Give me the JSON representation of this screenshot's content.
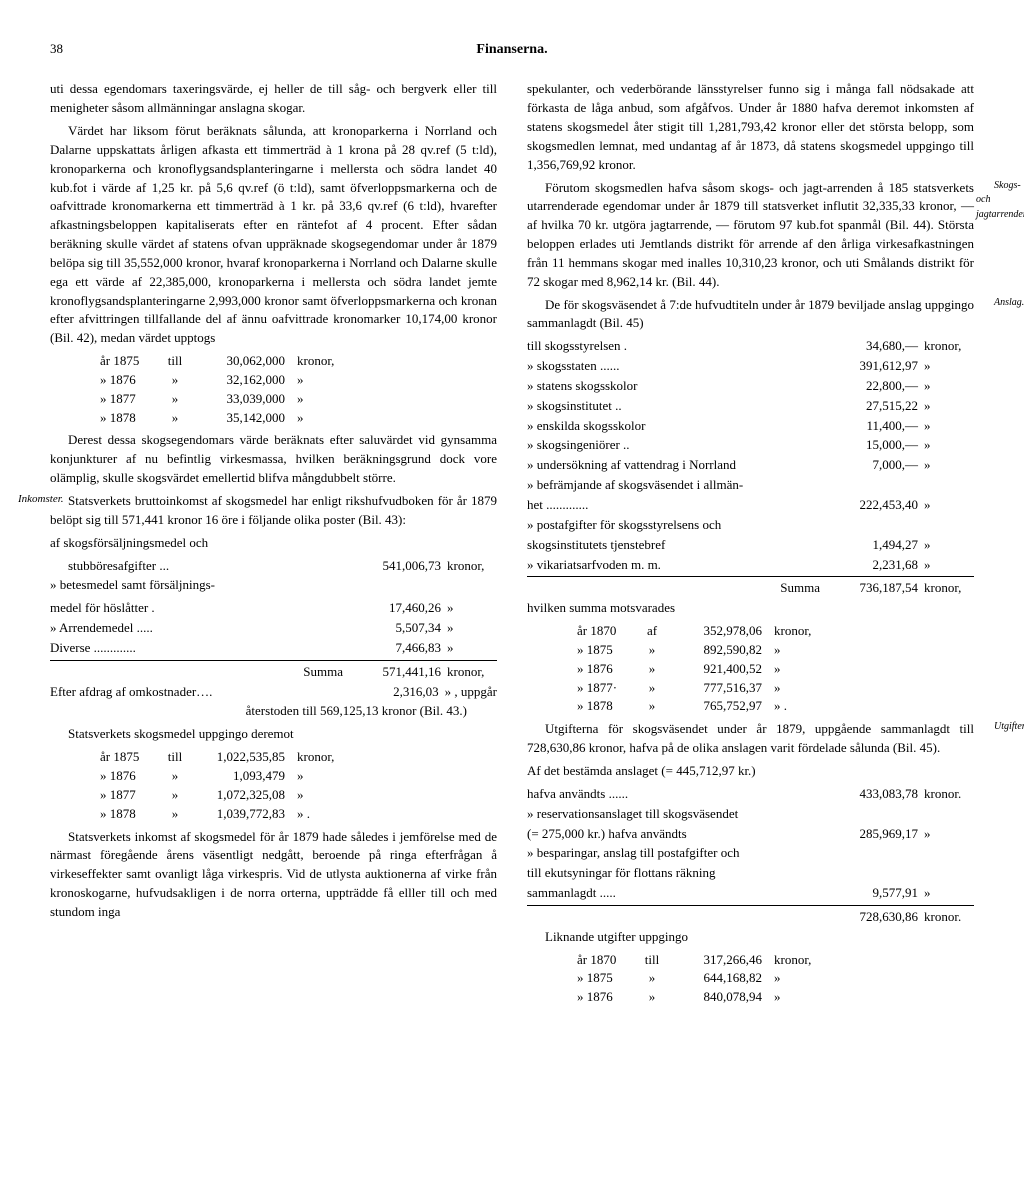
{
  "header": {
    "page_number": "38",
    "title": "Finanserna."
  },
  "left": {
    "p1": "uti dessa egendomars taxeringsvärde, ej heller de till såg- och bergverk eller till menigheter såsom allmänningar anslagna skogar.",
    "p2": "Värdet har liksom förut beräknats sålunda, att kronoparkerna i Norrland och Dalarne uppskattats årligen afkasta ett timmerträd à 1 krona på 28 qv.ref (5 t:ld), kronoparkerna och kronoflygsandsplanteringarne i mellersta och södra landet 40 kub.fot i värde af 1,25 kr. på 5,6 qv.ref (ö t:ld), samt öfverloppsmarkerna och de oafvittrade kronomarkerna ett timmerträd à 1 kr. på 33,6 qv.ref (6 t:ld), hvarefter afkastningsbeloppen kapitaliserats efter en räntefot af 4 procent. Efter sådan beräkning skulle värdet af statens ofvan uppräknade skogsegendomar under år 1879 belöpa sig till 35,552,000 kronor, hvaraf kronoparkerna i Norrland och Dalarne skulle ega ett värde af 22,385,000, kronoparkerna i mellersta och södra landet jemte kronoflygsandsplanteringarne 2,993,000 kronor samt öfverloppsmarkerna och kronan efter afvittringen tillfallande del af ännu oafvittrade kronomarker 10,174,00 kronor (Bil. 42), medan värdet upptogs",
    "years1": [
      {
        "y": "år 1875",
        "w": "till",
        "v": "30,062,000",
        "u": "kronor,"
      },
      {
        "y": "»  1876",
        "w": "»",
        "v": "32,162,000",
        "u": "»"
      },
      {
        "y": "»  1877",
        "w": "»",
        "v": "33,039,000",
        "u": "»"
      },
      {
        "y": "»  1878",
        "w": "»",
        "v": "35,142,000",
        "u": "»"
      }
    ],
    "p3": "Derest dessa skogsegendomars värde beräknats efter saluvärdet vid gynsamma konjunkturer af nu befintlig virkesmassa, hvilken beräkningsgrund dock vore olämplig, skulle skogsvärdet emellertid blifva mångdubbelt större.",
    "margin1": "Inkomster.",
    "p4": "Statsverkets bruttoinkomst af skogsmedel har enligt rikshufvudboken för år 1879 belöpt sig till 571,441 kronor 16 öre i följande olika poster (Bil. 43):",
    "p5": "af skogsförsäljningsmedel och",
    "fin1": [
      {
        "l": "stubböresafgifter",
        "v": "541,006,73",
        "u": "kronor,"
      }
    ],
    "p6": "»  betesmedel samt försäljnings-",
    "fin2": [
      {
        "l": "medel för höslåtter",
        "v": "17,460,26",
        "u": "»"
      },
      {
        "l": "»  Arrendemedel",
        "v": "5,507,34",
        "u": "»"
      },
      {
        "l": "Diverse",
        "v": "7,466,83",
        "u": "»"
      }
    ],
    "sum1_label": "Summa",
    "sum1_val": "571,441,16",
    "sum1_unit": "kronor,",
    "p7a": "Efter afdrag af omkostnader…. ",
    "p7b": "2,316,03",
    "p7c": "»    , uppgår",
    "p8": "återstoden till 569,125,13 kronor  (Bil. 43.)",
    "p9": "Statsverkets skogsmedel uppgingo deremot",
    "years2": [
      {
        "y": "år 1875",
        "w": "till",
        "v": "1,022,535,85",
        "u": "kronor,"
      },
      {
        "y": "»  1876",
        "w": "»",
        "v": "1,093,479",
        "u": "»"
      },
      {
        "y": "»  1877",
        "w": "»",
        "v": "1,072,325,08",
        "u": "»"
      },
      {
        "y": "»  1878",
        "w": "»",
        "v": "1,039,772,83",
        "u": "»   ."
      }
    ],
    "p10": "Statsverkets inkomst af skogsmedel för år 1879 hade således i jemförelse med de närmast föregående årens väsentligt nedgått, beroende på ringa efterfrågan å virkeseffekter samt ovanligt låga virkespris. Vid de utlysta auktionerna af virke från kronoskogarne, hufvudsakligen i de norra orterna, uppträdde få elller till och med stundom inga"
  },
  "right": {
    "p1": "spekulanter, och vederbörande länsstyrelser funno sig i många fall nödsakade att förkasta de låga anbud, som afgåfvos. Under år 1880 hafva deremot inkomsten af statens skogsmedel åter stigit till 1,281,793,42 kronor eller det största belopp, som skogsmedlen lemnat, med undantag af år 1873, då statens skogsmedel uppgingo till 1,356,769,92 kronor.",
    "margin1": "Skogs- och jagtarrenden.",
    "p2": "Förutom skogsmedlen hafva såsom skogs- och jagt-arrenden å 185 statsverkets utarrenderade egendomar under år 1879 till statsverket influtit 32,335,33 kronor, — af hvilka 70 kr. utgöra jagtarrende, — förutom 97 kub.fot spanmål (Bil. 44). Största beloppen erlades uti Jemtlands distrikt för arrende af den årliga virkesafkastningen från 11 hemmans skogar med inalles 10,310,23 kronor, och uti Smålands distrikt för 72 skogar med 8,962,14 kr. (Bil. 44).",
    "margin2": "Anslag.",
    "p3": "De för skogsväsendet å 7:de hufvudtiteln under år 1879 beviljade anslag uppgingo sammanlagdt (Bil. 45)",
    "anslag": [
      {
        "l": "till skogsstyrelsen",
        "v": "34,680,—",
        "u": "kronor,"
      },
      {
        "l": "»  skogsstaten",
        "v": "391,612,97",
        "u": "»"
      },
      {
        "l": "»  statens skogsskolor",
        "v": "22,800,—",
        "u": "»"
      },
      {
        "l": "»  skogsinstitutet",
        "v": "27,515,22",
        "u": "»"
      },
      {
        "l": "»  enskilda skogsskolor",
        "v": "11,400,—",
        "u": "»"
      },
      {
        "l": "»  skogsingeniörer",
        "v": "15,000,—",
        "u": "»"
      },
      {
        "l": "»  undersökning af vattendrag i Norrland",
        "v": "7,000,—",
        "u": "»"
      },
      {
        "l": "»  befrämjande af skogsväsendet i allmän-",
        "v": "",
        "u": ""
      },
      {
        "l": "    het",
        "v": "222,453,40",
        "u": "»"
      },
      {
        "l": "»  postafgifter för skogsstyrelsens och",
        "v": "",
        "u": ""
      },
      {
        "l": "    skogsinstitutets tjenstebref",
        "v": "1,494,27",
        "u": "»"
      },
      {
        "l": "»  vikariatsarfvoden m. m.",
        "v": "2,231,68",
        "u": "»"
      }
    ],
    "sum2_label": "Summa",
    "sum2_val": "736,187,54",
    "sum2_unit": "kronor,",
    "p4": "hvilken summa motsvarades",
    "years3": [
      {
        "y": "år 1870",
        "w": "af",
        "v": "352,978,06",
        "u": "kronor,"
      },
      {
        "y": "»  1875",
        "w": "»",
        "v": "892,590,82",
        "u": "»"
      },
      {
        "y": "»  1876",
        "w": "»",
        "v": "921,400,52",
        "u": "»"
      },
      {
        "y": "»  1877·",
        "w": "»",
        "v": "777,516,37",
        "u": "»"
      },
      {
        "y": "»  1878",
        "w": "»",
        "v": "765,752,97",
        "u": "»   ."
      }
    ],
    "margin3": "Utgifter.",
    "p5": "Utgifterna för skogsväsendet under år 1879, uppgående sammanlagdt till 728,630,86 kronor, hafva på de olika anslagen varit fördelade sålunda (Bil. 45).",
    "p6": "Af det bestämda anslaget (= 445,712,97 kr.)",
    "utg": [
      {
        "l": "hafva användts",
        "v": "433,083,78",
        "u": "kronor."
      },
      {
        "l": "»  reservationsanslaget till skogsväsendet",
        "v": "",
        "u": ""
      },
      {
        "l": "    (= 275,000 kr.) hafva användts",
        "v": "285,969,17",
        "u": "»"
      },
      {
        "l": "»  besparingar, anslag till postafgifter och",
        "v": "",
        "u": ""
      },
      {
        "l": "    till ekutsyningar för flottans räkning",
        "v": "",
        "u": ""
      },
      {
        "l": "    sammanlagdt",
        "v": "9,577,91",
        "u": "»"
      }
    ],
    "sum3_val": "728,630,86",
    "sum3_unit": "kronor.",
    "p7": "Liknande utgifter uppgingo",
    "years4": [
      {
        "y": "år 1870",
        "w": "till",
        "v": "317,266,46",
        "u": "kronor,"
      },
      {
        "y": "»  1875",
        "w": "»",
        "v": "644,168,82",
        "u": "»"
      },
      {
        "y": "»  1876",
        "w": "»",
        "v": "840,078,94",
        "u": "»"
      }
    ]
  }
}
